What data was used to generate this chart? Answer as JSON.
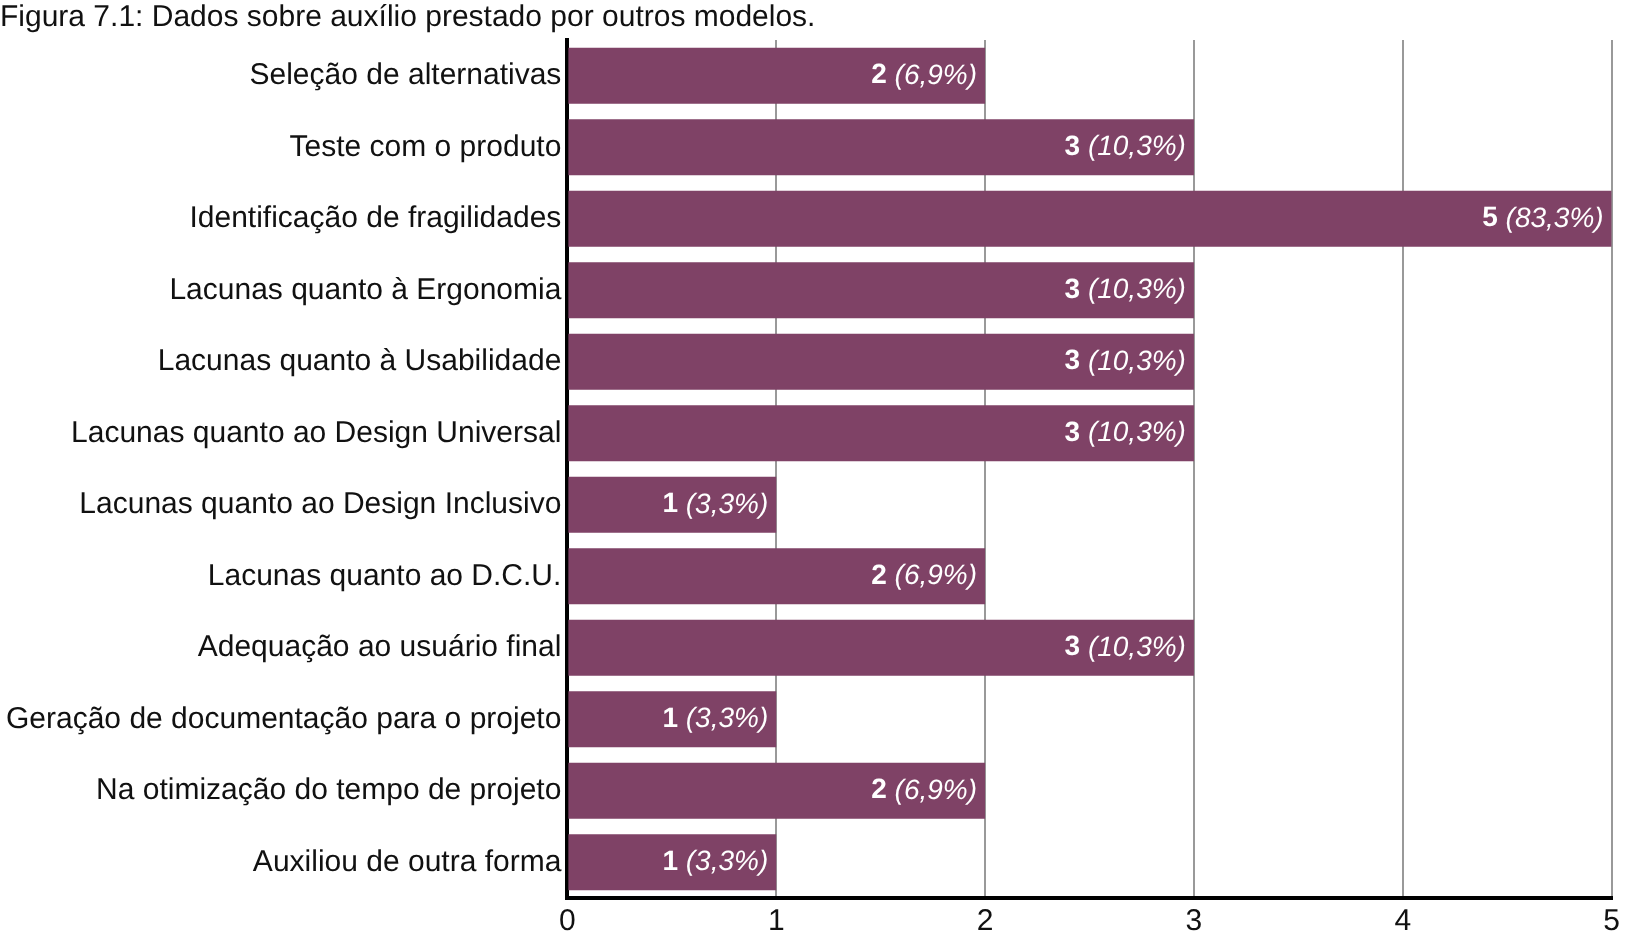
{
  "chart_data": {
    "type": "bar",
    "orientation": "horizontal",
    "title": "Figura 7.1: Dados sobre auxílio prestado por outros modelos.",
    "categories": [
      "Seleção de alternativas",
      "Teste com o produto",
      "Identificação de fragilidades",
      "Lacunas quanto à Ergonomia",
      "Lacunas quanto à Usabilidade",
      "Lacunas quanto ao Design Universal",
      "Lacunas quanto ao Design Inclusivo",
      "Lacunas quanto ao D.C.U.",
      "Adequação ao usuário final",
      "Geração de documentação para o projeto",
      "Na otimização do tempo de projeto",
      "Auxiliou de outra forma"
    ],
    "values": [
      2,
      3,
      5,
      3,
      3,
      3,
      1,
      2,
      3,
      1,
      2,
      1
    ],
    "value_labels": [
      "2 (6,9%)",
      "3 (10,3%)",
      "5 (83,3%)",
      "3 (10,3%)",
      "3 (10,3%)",
      "3 (10,3%)",
      "1 (3,3%)",
      "2 (6,9%)",
      "3 (10,3%)",
      "1 (3,3%)",
      "2 (6,9%)",
      "1 (3,3%)"
    ],
    "color": "#7f4266",
    "xlim": [
      0,
      5
    ],
    "xticks": [
      0,
      1,
      2,
      3,
      4,
      5
    ],
    "grid": "x",
    "legend": false
  }
}
